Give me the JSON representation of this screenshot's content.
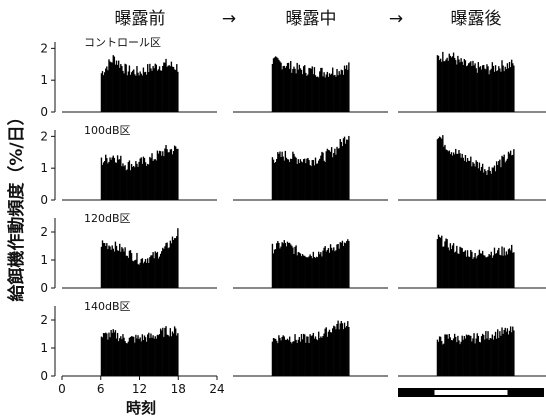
{
  "chart_data": {
    "type": "bar",
    "phases": [
      "曝露前",
      "曝露中",
      "曝露後"
    ],
    "arrow": "→",
    "ylabel": "給餌機作動頻度（%/日）",
    "xlabel": "時刻",
    "xlim": [
      0,
      24
    ],
    "xticks": [
      "0",
      "6",
      "12",
      "18",
      "24"
    ],
    "yticks": [
      "0",
      "1",
      "2"
    ],
    "light_dark_bar": {
      "dark_hours": [
        [
          0,
          6
        ],
        [
          18,
          24
        ]
      ],
      "light_hours": [
        6,
        18
      ]
    },
    "panels": [
      {
        "label": "コントロール区",
        "ylim": [
          0,
          2.2
        ],
        "series": [
          {
            "phase": "曝露前",
            "active_hours": [
              6,
              18
            ],
            "profile_hours": [
              6,
              8,
              10,
              12,
              14,
              16,
              18
            ],
            "profile_values": [
              1.2,
              1.7,
              1.3,
              1.25,
              1.4,
              1.5,
              1.4
            ]
          },
          {
            "phase": "曝露中",
            "active_hours": [
              6,
              18
            ],
            "profile_hours": [
              6,
              8,
              10,
              12,
              14,
              16,
              18
            ],
            "profile_values": [
              1.6,
              1.5,
              1.35,
              1.3,
              1.25,
              1.3,
              1.4
            ]
          },
          {
            "phase": "曝露後",
            "active_hours": [
              6,
              18
            ],
            "profile_hours": [
              6,
              8,
              10,
              12,
              14,
              16,
              18
            ],
            "profile_values": [
              1.7,
              1.8,
              1.5,
              1.4,
              1.35,
              1.45,
              1.5
            ]
          }
        ]
      },
      {
        "label": "100dB区",
        "ylim": [
          0,
          2.2
        ],
        "series": [
          {
            "phase": "曝露前",
            "active_hours": [
              6,
              18
            ],
            "profile_hours": [
              6,
              8,
              10,
              12,
              14,
              16,
              18
            ],
            "profile_values": [
              1.2,
              1.4,
              1.1,
              1.15,
              1.3,
              1.55,
              1.6
            ]
          },
          {
            "phase": "曝露中",
            "active_hours": [
              6,
              18
            ],
            "profile_hours": [
              6,
              8,
              10,
              12,
              14,
              16,
              18
            ],
            "profile_values": [
              1.3,
              1.4,
              1.3,
              1.25,
              1.35,
              1.6,
              2.1
            ]
          },
          {
            "phase": "曝露後",
            "active_hours": [
              6,
              18
            ],
            "profile_hours": [
              6,
              8,
              10,
              12,
              14,
              16,
              18
            ],
            "profile_values": [
              2.1,
              1.6,
              1.35,
              1.15,
              0.95,
              1.2,
              1.5
            ]
          }
        ]
      },
      {
        "label": "120dB区",
        "ylim": [
          0,
          2.5
        ],
        "series": [
          {
            "phase": "曝露前",
            "active_hours": [
              6,
              18
            ],
            "profile_hours": [
              6,
              8,
              10,
              12,
              14,
              16,
              18
            ],
            "profile_values": [
              1.6,
              1.5,
              1.3,
              1.0,
              1.1,
              1.4,
              2.0
            ]
          },
          {
            "phase": "曝露中",
            "active_hours": [
              6,
              18
            ],
            "profile_hours": [
              6,
              8,
              10,
              12,
              14,
              16,
              18
            ],
            "profile_values": [
              1.4,
              1.6,
              1.3,
              1.2,
              1.3,
              1.5,
              1.6
            ]
          },
          {
            "phase": "曝露後",
            "active_hours": [
              6,
              18
            ],
            "profile_hours": [
              6,
              8,
              10,
              12,
              14,
              16,
              18
            ],
            "profile_values": [
              1.8,
              1.5,
              1.3,
              1.2,
              1.25,
              1.3,
              1.4
            ]
          }
        ]
      },
      {
        "label": "140dB区",
        "ylim": [
          0,
          2.5
        ],
        "series": [
          {
            "phase": "曝露前",
            "active_hours": [
              6,
              18
            ],
            "profile_hours": [
              6,
              8,
              10,
              12,
              14,
              16,
              18
            ],
            "profile_values": [
              1.4,
              1.5,
              1.3,
              1.35,
              1.4,
              1.6,
              1.6
            ]
          },
          {
            "phase": "曝露中",
            "active_hours": [
              6,
              18
            ],
            "profile_hours": [
              6,
              8,
              10,
              12,
              14,
              16,
              18
            ],
            "profile_values": [
              1.3,
              1.4,
              1.3,
              1.35,
              1.5,
              1.8,
              1.9
            ]
          },
          {
            "phase": "曝露後",
            "active_hours": [
              6,
              18
            ],
            "profile_hours": [
              6,
              8,
              10,
              12,
              14,
              16,
              18
            ],
            "profile_values": [
              1.2,
              1.4,
              1.3,
              1.35,
              1.45,
              1.55,
              1.6
            ]
          }
        ]
      }
    ]
  }
}
